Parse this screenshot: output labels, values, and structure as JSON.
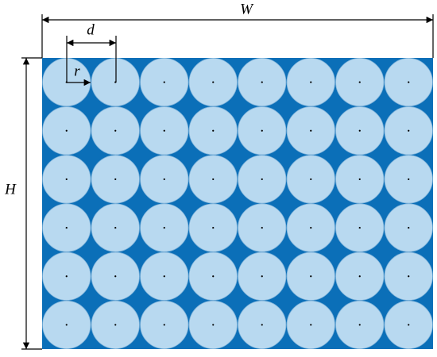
{
  "labels": {
    "width": "W",
    "height": "H",
    "spacing": "d",
    "radius": "r"
  }
}
